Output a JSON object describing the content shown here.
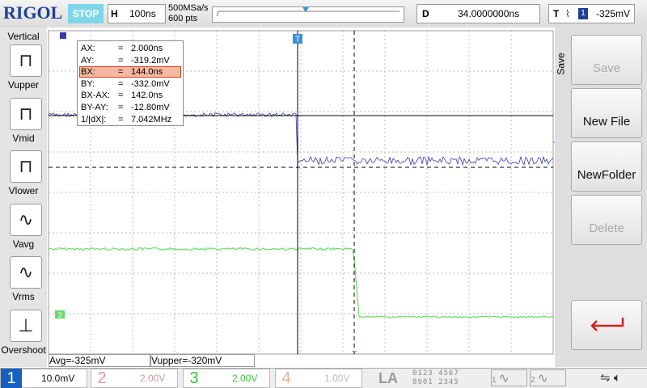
{
  "header": {
    "logo": "RIGOL",
    "status": "STOP",
    "timebase_label": "H",
    "timebase": "100ns",
    "sample_rate": "500MSa/s",
    "memory_depth": "600 pts",
    "delay_label": "D",
    "delay": "34.0000000ns",
    "trigger_label": "T",
    "trigger_source": "1",
    "trigger_level": "-325mV"
  },
  "left_menu": {
    "title": "Vertical",
    "items": [
      "Vupper",
      "Vmid",
      "Vlower",
      "Vavg",
      "Vrms",
      "Overshoot"
    ]
  },
  "cursor_readout": {
    "rows": [
      [
        "AX:",
        "=",
        "2.000ns"
      ],
      [
        "AY:",
        "=",
        "-319.2mV"
      ],
      [
        "BX:",
        "=",
        "144.0ns"
      ],
      [
        "BY:",
        "=",
        "-332.0mV"
      ],
      [
        "BX-AX:",
        "=",
        "142.0ns"
      ],
      [
        "BY-AY:",
        "=",
        "-12.80mV"
      ],
      [
        "1/|dX|:",
        "=",
        "7.042MHz"
      ]
    ]
  },
  "markers": {
    "trigger": "T",
    "channel_3": "3"
  },
  "right_menu": {
    "title": "Save",
    "buttons": [
      "Save",
      "New File",
      "NewFolder",
      "Delete"
    ]
  },
  "measurements": [
    "Avg=-325mV",
    "Vupper=-320mV"
  ],
  "channels": [
    {
      "number": "1",
      "scale": "10.0mV"
    },
    {
      "number": "2",
      "scale": "2.00V"
    },
    {
      "number": "3",
      "scale": "2.00V"
    },
    {
      "number": "4",
      "scale": "1.00V"
    }
  ],
  "la": {
    "label": "LA",
    "top": "0123 4567",
    "bottom": "8901 2345"
  },
  "math": [
    "1",
    "2"
  ]
}
